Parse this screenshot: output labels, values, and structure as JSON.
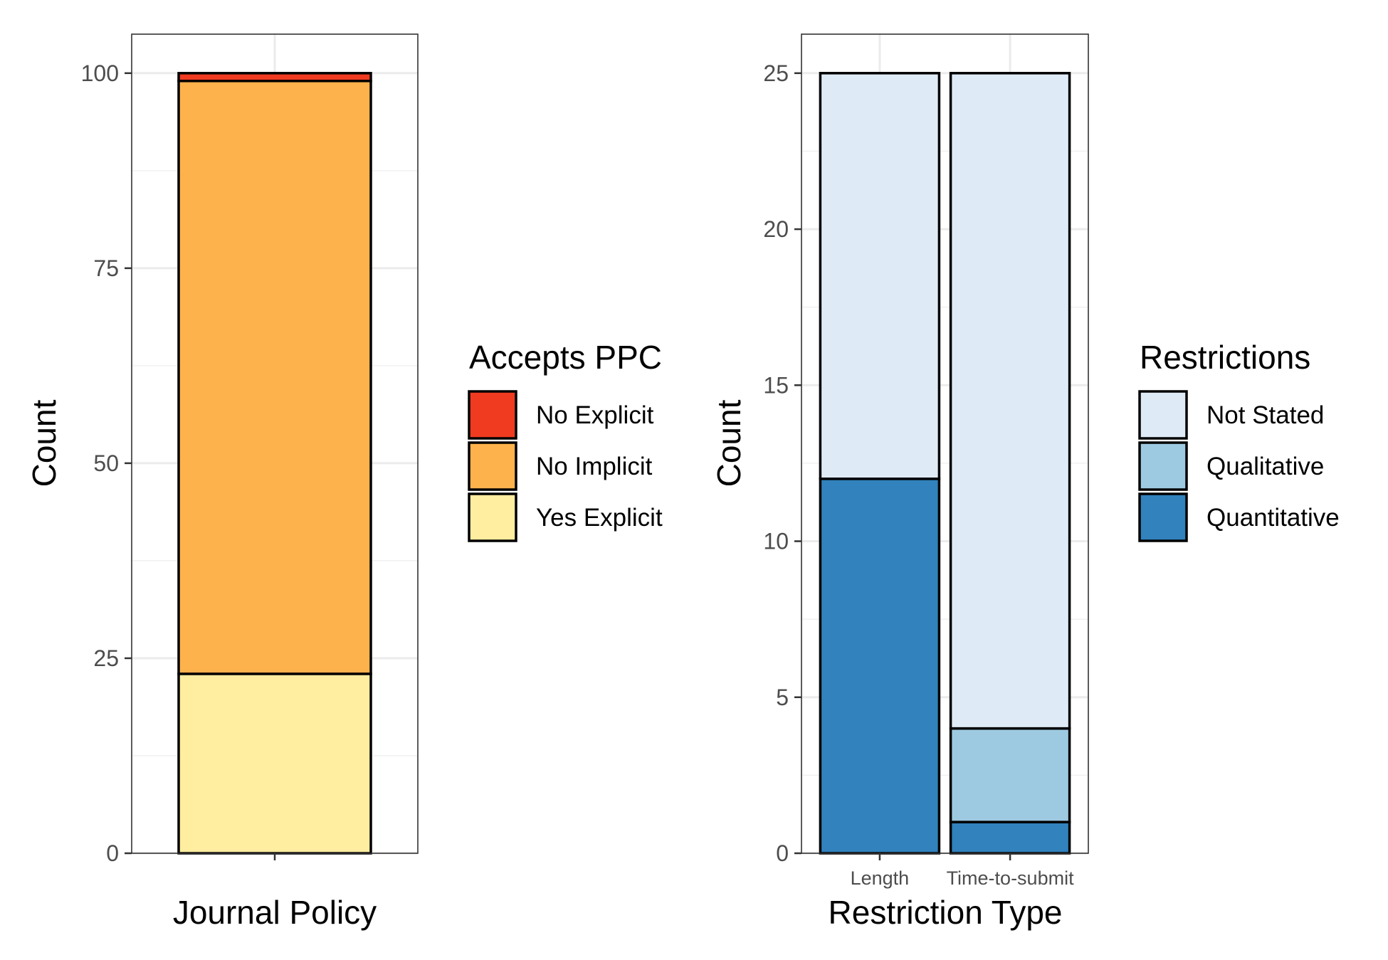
{
  "chart_data": [
    {
      "type": "bar",
      "stacked": true,
      "xlabel": "Journal Policy",
      "ylabel": "Count",
      "categories": [
        ""
      ],
      "ylim": [
        0,
        105
      ],
      "yticks": [
        0,
        25,
        50,
        75,
        100
      ],
      "grid": true,
      "legend": {
        "title": "Accepts PPC",
        "placement": "right"
      },
      "series": [
        {
          "name": "Yes Explicit",
          "color": "#FFEDA0",
          "values": [
            23
          ]
        },
        {
          "name": "No Implicit",
          "color": "#FEB24C",
          "values": [
            76
          ]
        },
        {
          "name": "No Explicit",
          "color": "#F03B20",
          "values": [
            1
          ]
        }
      ],
      "legend_order": [
        "No Explicit",
        "No Implicit",
        "Yes Explicit"
      ]
    },
    {
      "type": "bar",
      "stacked": true,
      "xlabel": "Restriction Type",
      "ylabel": "Count",
      "categories": [
        "Length",
        "Time-to-submit"
      ],
      "ylim": [
        0,
        26.25
      ],
      "yticks": [
        0,
        5,
        10,
        15,
        20,
        25
      ],
      "grid": true,
      "legend": {
        "title": "Restrictions",
        "placement": "right"
      },
      "series": [
        {
          "name": "Quantitative",
          "color": "#3182BD",
          "values": [
            12,
            1
          ]
        },
        {
          "name": "Qualitative",
          "color": "#9ECAE1",
          "values": [
            0,
            3
          ]
        },
        {
          "name": "Not Stated",
          "color": "#DEEBF7",
          "values": [
            13,
            21
          ]
        }
      ],
      "legend_order": [
        "Not Stated",
        "Qualitative",
        "Quantitative"
      ]
    }
  ]
}
